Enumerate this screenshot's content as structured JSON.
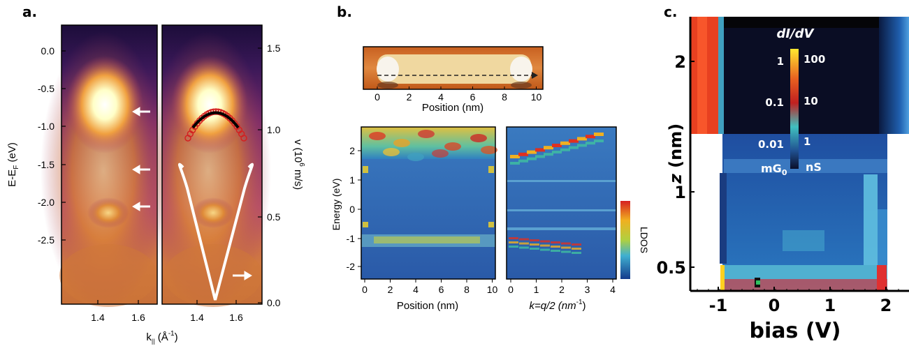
{
  "colors": {
    "arpes_dark": "#1c0d3a",
    "arpes_mid": "#7a2a6a",
    "arpes_orange": "#e07a20",
    "arpes_bright": "#ffffe0",
    "ldos_low": "#143a8c",
    "ldos_high": "#d62020",
    "didv_low": "#0a0f2a",
    "didv_high": "#ffe830"
  },
  "panel_a": {
    "label": "a.",
    "ylabel_left": "E-E",
    "ylabel_left_sub": "F",
    "ylabel_left_unit": " (eV)",
    "ylabel_right": "v (10",
    "ylabel_right_sup": "6",
    "ylabel_right_unit": " m/s)",
    "xlabel": "k",
    "xlabel_sub": "||",
    "xlabel_unit": " (Å",
    "xlabel_sup": "-1",
    "xlabel_close": ")",
    "left_yticks": [
      "0.0",
      "-0.5",
      "-1.0",
      "-1.5",
      "-2.0",
      "-2.5"
    ],
    "right_yticks": [
      "1.5",
      "1.0",
      "0.5",
      "0.0"
    ],
    "xticks": [
      "1.4",
      "1.6"
    ]
  },
  "panel_b": {
    "label": "b.",
    "stm_xlabel": "Position (nm)",
    "stm_xticks": [
      "0",
      "2",
      "4",
      "6",
      "8",
      "10"
    ],
    "map_ylabel": "Energy (eV)",
    "map_yticks": [
      "2",
      "1",
      "0",
      "-1",
      "-2"
    ],
    "map_left_xlabel": "Position (nm)",
    "map_left_xticks": [
      "0",
      "2",
      "4",
      "6",
      "8",
      "10"
    ],
    "map_right_xlabel": "k=q/2 (nm",
    "map_right_xlabel_sup": "-1",
    "map_right_xlabel_close": ")",
    "map_right_xticks": [
      "0",
      "1",
      "2",
      "3",
      "4"
    ],
    "colorbar_label": "LDOS"
  },
  "panel_c": {
    "label": "c.",
    "ylabel_z": "z",
    "ylabel_unit": " (nm)",
    "yticks": [
      "2",
      "1",
      "0.5"
    ],
    "xlabel": "bias (V)",
    "xticks": [
      "-1",
      "0",
      "1",
      "2"
    ],
    "colorbar_title": "dI/dV",
    "colorbar_left_ticks": [
      "1",
      "0.1",
      "0.01"
    ],
    "colorbar_right_ticks": [
      "100",
      "10",
      "1"
    ],
    "colorbar_left_unit": "mG",
    "colorbar_left_unit_sub": "0",
    "colorbar_right_unit": "nS"
  }
}
